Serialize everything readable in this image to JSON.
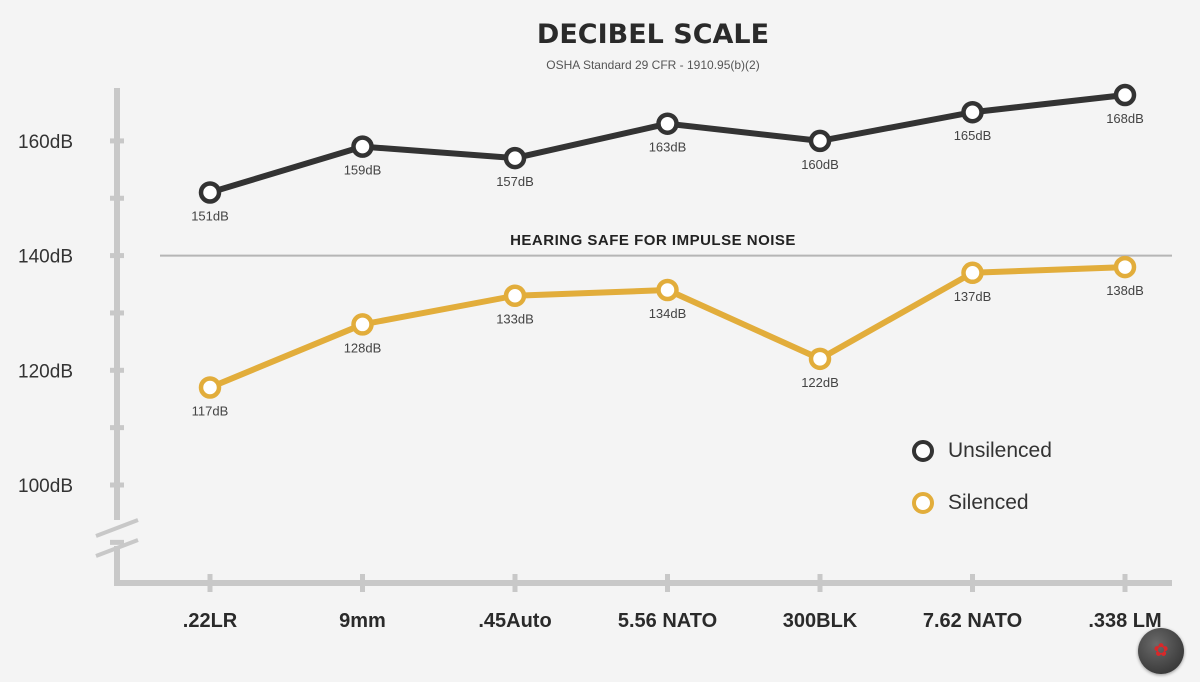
{
  "chart_data": {
    "type": "line",
    "title": "DECIBEL SCALE",
    "subtitle": "OSHA Standard 29 CFR - 1910.95(b)(2)",
    "categories": [
      ".22LR",
      "9mm",
      ".45Auto",
      "5.56 NATO",
      "300BLK",
      "7.62 NATO",
      ".338 LM"
    ],
    "series": [
      {
        "name": "Unsilenced",
        "color": "#333333",
        "values": [
          151,
          159,
          157,
          163,
          160,
          165,
          168
        ],
        "labels": [
          "151dB",
          "159dB",
          "157dB",
          "163dB",
          "160dB",
          "165dB",
          "168dB"
        ],
        "label_position": [
          "below",
          "below",
          "below",
          "below",
          "below",
          "below",
          "below"
        ]
      },
      {
        "name": "Silenced",
        "color": "#e2ad3b",
        "values": [
          117,
          128,
          133,
          134,
          122,
          137,
          138
        ],
        "labels": [
          "117dB",
          "128dB",
          "133dB",
          "134dB",
          "122dB",
          "137dB",
          "138dB"
        ],
        "label_position": [
          "below",
          "below",
          "below",
          "below",
          "below",
          "below",
          "below"
        ]
      }
    ],
    "y_ticks": [
      100,
      120,
      140,
      160
    ],
    "y_tick_labels": [
      "100dB",
      "120dB",
      "140dB",
      "160dB"
    ],
    "ylim": [
      84,
      170
    ],
    "reference_line": {
      "value": 140,
      "label": "HEARING SAFE FOR IMPULSE NOISE"
    },
    "legend_placement": "bottom-right"
  },
  "legend": {
    "unsilenced": "Unsilenced",
    "silenced": "Silenced"
  }
}
